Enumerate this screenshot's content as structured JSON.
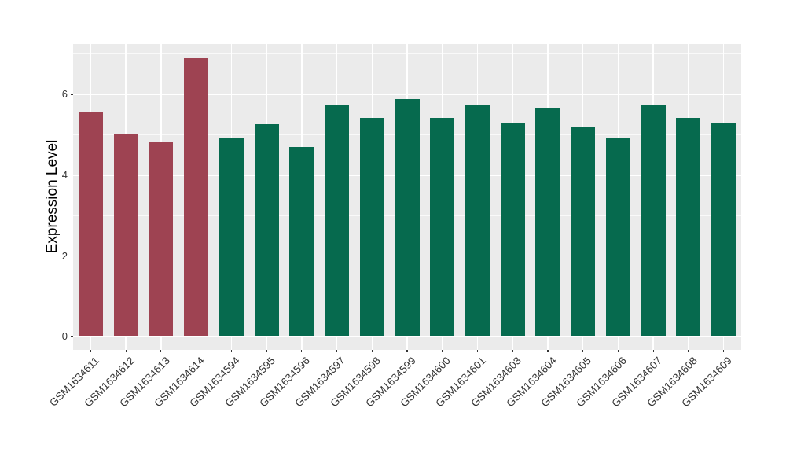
{
  "chart_data": {
    "type": "bar",
    "title": "",
    "xlabel": "",
    "ylabel": "Expression Level",
    "categories": [
      "GSM1634611",
      "GSM1634612",
      "GSM1634613",
      "GSM1634614",
      "GSM1634594",
      "GSM1634595",
      "GSM1634596",
      "GSM1634597",
      "GSM1634598",
      "GSM1634599",
      "GSM1634600",
      "GSM1634601",
      "GSM1634603",
      "GSM1634604",
      "GSM1634605",
      "GSM1634606",
      "GSM1634607",
      "GSM1634608",
      "GSM1634609"
    ],
    "values": [
      5.55,
      5.01,
      4.82,
      6.9,
      4.93,
      5.27,
      4.7,
      5.76,
      5.42,
      5.89,
      5.42,
      5.74,
      5.28,
      5.67,
      5.18,
      4.93,
      5.76,
      5.42,
      5.28
    ],
    "bar_color_groups": [
      {
        "name": "highlighted-samples",
        "color": "#9E4352",
        "categories": [
          "GSM1634611",
          "GSM1634612",
          "GSM1634613",
          "GSM1634614"
        ]
      },
      {
        "name": "other-samples",
        "color": "#066A4E",
        "categories": [
          "GSM1634594",
          "GSM1634595",
          "GSM1634596",
          "GSM1634597",
          "GSM1634598",
          "GSM1634599",
          "GSM1634600",
          "GSM1634601",
          "GSM1634603",
          "GSM1634604",
          "GSM1634605",
          "GSM1634606",
          "GSM1634607",
          "GSM1634608",
          "GSM1634609"
        ]
      }
    ],
    "yticks": [
      0,
      2,
      4,
      6
    ],
    "y_minor_gridlines": [
      1,
      3,
      5,
      7
    ],
    "ylim": [
      0,
      7.25
    ],
    "grid": true,
    "legend_position": "none",
    "x_tick_label_rotation_deg": 45
  },
  "style": {
    "figure_background": "#FFFFFF",
    "panel_background": "#EBEBEB",
    "gridline_color": "#FFFFFF",
    "axis_text_color": "#333333",
    "axis_title_color": "#000000",
    "tick_mark_color": "#333333"
  }
}
